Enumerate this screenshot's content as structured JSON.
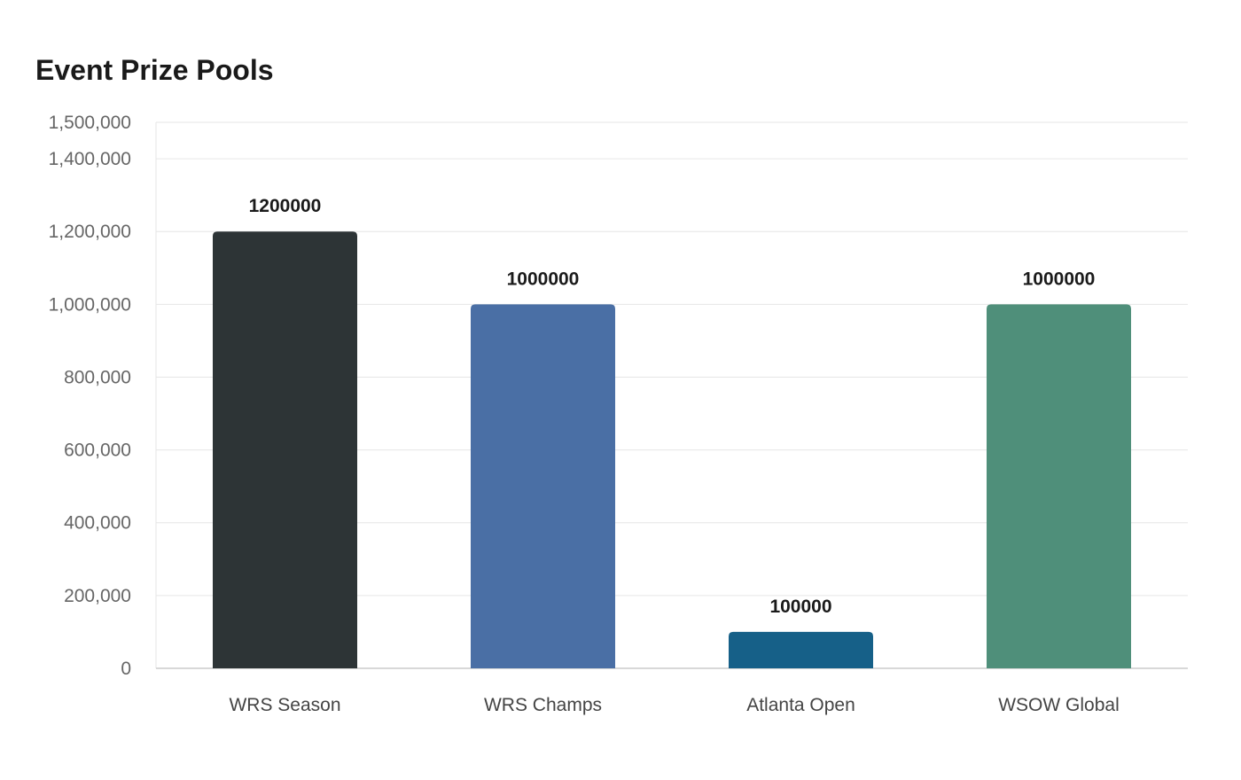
{
  "chart_data": {
    "type": "bar",
    "title": "Event Prize Pools",
    "xlabel": "",
    "ylabel": "",
    "categories": [
      "WRS Season",
      "WRS Champs",
      "Atlanta Open",
      "WSOW Global"
    ],
    "values": [
      1200000,
      1000000,
      100000,
      1000000
    ],
    "value_labels": [
      "1200000",
      "1000000",
      "100000",
      "1000000"
    ],
    "colors": [
      "#2d3436",
      "#4a6fa5",
      "#166088",
      "#4f8f7a"
    ],
    "ylim": [
      0,
      1500000
    ],
    "yticks": [
      0,
      200000,
      400000,
      600000,
      800000,
      1000000,
      1200000,
      1400000,
      1500000
    ],
    "ytick_labels": [
      "0",
      "200,000",
      "400,000",
      "600,000",
      "800,000",
      "1,000,000",
      "1,200,000",
      "1,400,000",
      "1,500,000"
    ],
    "grid": true,
    "legend": "none"
  }
}
